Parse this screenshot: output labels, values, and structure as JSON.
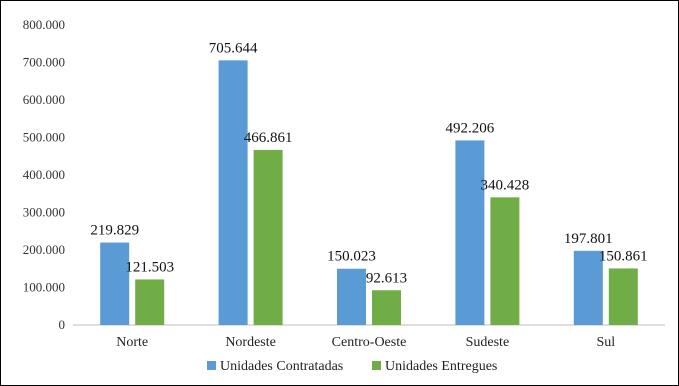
{
  "chart_data": {
    "type": "bar",
    "categories": [
      "Norte",
      "Nordeste",
      "Centro-Oeste",
      "Sudeste",
      "Sul"
    ],
    "series": [
      {
        "name": "Unidades Contratadas",
        "values": [
          219829,
          705644,
          150023,
          492206,
          197801
        ],
        "labels": [
          "219.829",
          "705.644",
          "150.023",
          "492.206",
          "197.801"
        ],
        "color": "#5B9BD5"
      },
      {
        "name": "Unidades Entregues",
        "values": [
          121503,
          466861,
          92613,
          340428,
          150861
        ],
        "labels": [
          "121.503",
          "466.861",
          "92.613",
          "340.428",
          "150.861"
        ],
        "color": "#70AD47"
      }
    ],
    "ylim": [
      0,
      800000
    ],
    "yticks": [
      0,
      100000,
      200000,
      300000,
      400000,
      500000,
      600000,
      700000,
      800000
    ],
    "ytick_labels": [
      "0",
      "100.000",
      "200.000",
      "300.000",
      "400.000",
      "500.000",
      "600.000",
      "700.000",
      "800.000"
    ],
    "grid": false,
    "legend_position": "bottom"
  }
}
